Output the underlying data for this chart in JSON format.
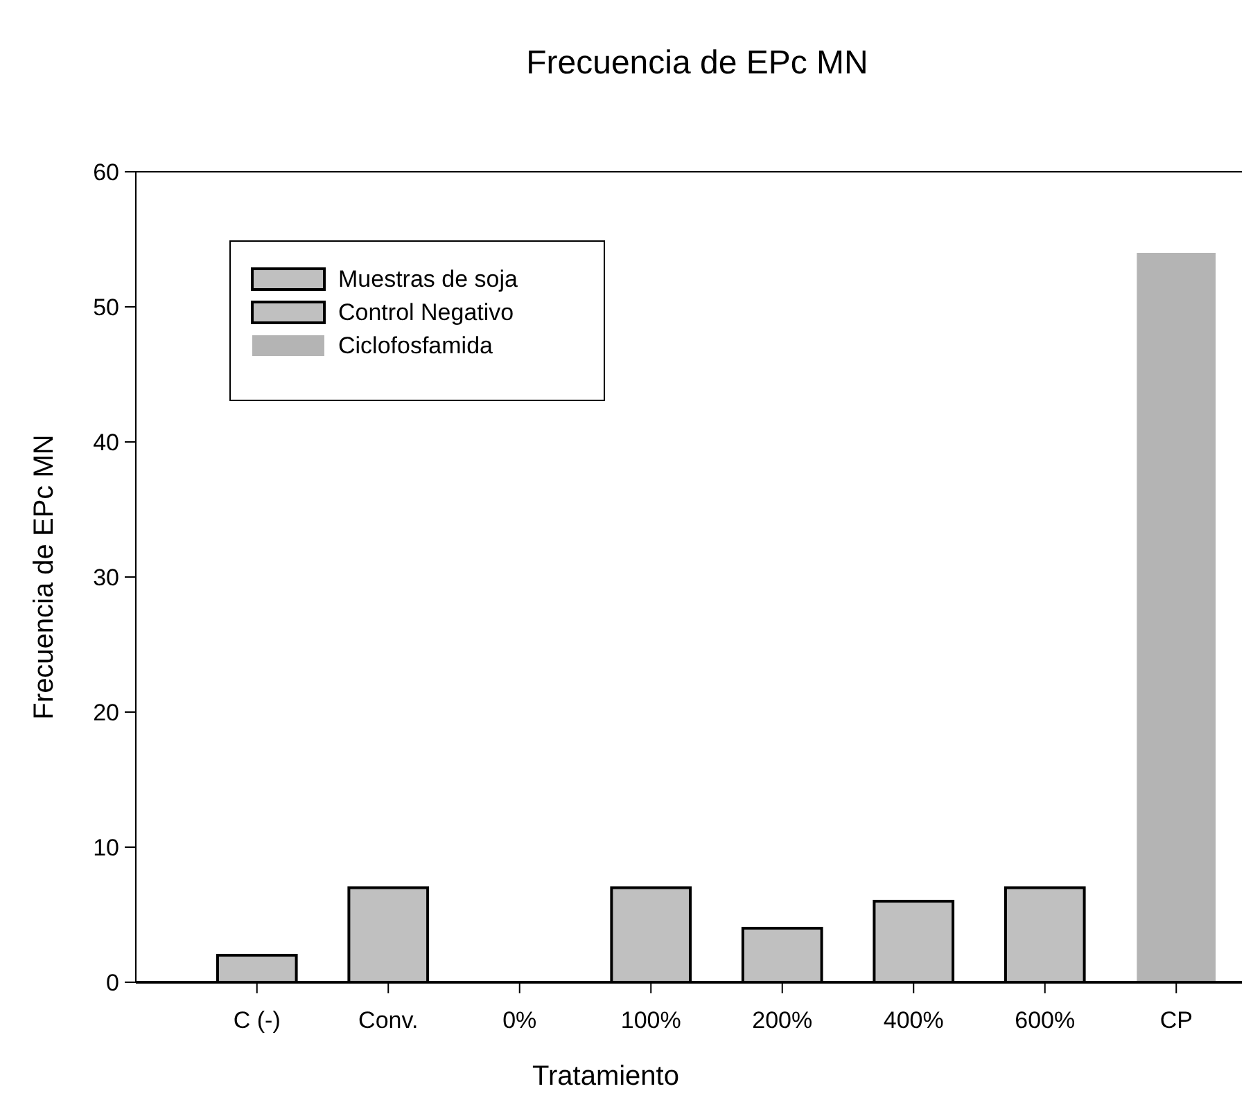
{
  "chart_data": {
    "type": "bar",
    "title": "Frecuencia de EPc MN",
    "xlabel": "Tratamiento",
    "ylabel": "Frecuencia de EPc MN",
    "categories": [
      "C (-)",
      "Conv.",
      "0%",
      "100%",
      "200%",
      "400%",
      "600%",
      "CP"
    ],
    "series": [
      {
        "name": "Muestras de soja",
        "color": "#c0c0c0",
        "values": [
          null,
          7,
          0,
          7,
          4,
          6,
          7,
          null
        ]
      },
      {
        "name": "Control Negativo",
        "color": "#c0c0c0",
        "values": [
          2,
          null,
          null,
          null,
          null,
          null,
          null,
          null
        ]
      },
      {
        "name": "Ciclofosfamida",
        "color": "#b4b4b4",
        "values": [
          null,
          null,
          null,
          null,
          null,
          null,
          null,
          54
        ]
      }
    ],
    "ylim": [
      0,
      60
    ],
    "yticks": [
      0,
      10,
      20,
      30,
      40,
      50,
      60
    ],
    "grid": false,
    "legend": "top left"
  }
}
